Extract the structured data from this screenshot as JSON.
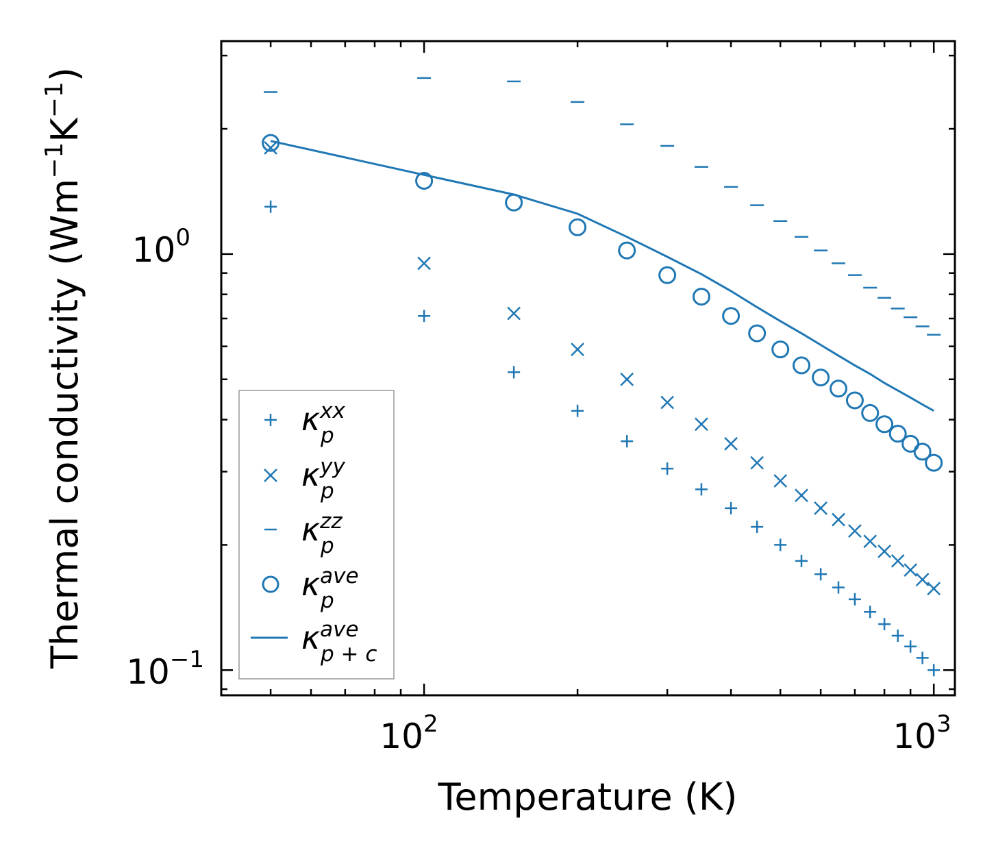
{
  "chart_data": {
    "type": "scatter",
    "xlabel": "Temperature (K)",
    "ylabel_main": "Thermal conductivity (Wm",
    "ylabel_exp1": "−1",
    "ylabel_mid": "K",
    "ylabel_exp2": "−1",
    "ylabel_end": ")",
    "xscale": "log",
    "yscale": "log",
    "xlim": [
      40,
      1100
    ],
    "ylim": [
      0.087,
      3.25
    ],
    "xticks": [
      {
        "base": "10",
        "exp": "2",
        "value": 100
      },
      {
        "base": "10",
        "exp": "3",
        "value": 1000
      }
    ],
    "yticks": [
      {
        "base": "10",
        "exp": "−1",
        "value": 0.1
      },
      {
        "base": "10",
        "exp": "0",
        "value": 1
      }
    ],
    "color": "#1f77b4",
    "x": [
      50,
      100,
      150,
      200,
      250,
      300,
      350,
      400,
      450,
      500,
      550,
      600,
      650,
      700,
      750,
      800,
      850,
      900,
      950,
      1000
    ],
    "series": [
      {
        "name": "kxx",
        "marker": "plus",
        "label_base": "κ",
        "label_sub": "p",
        "label_sup": "xx",
        "values": [
          1.3,
          0.71,
          0.52,
          0.42,
          0.355,
          0.305,
          0.272,
          0.245,
          0.221,
          0.2,
          0.183,
          0.17,
          0.158,
          0.148,
          0.138,
          0.129,
          0.121,
          0.114,
          0.107,
          0.1
        ]
      },
      {
        "name": "kyy",
        "marker": "x",
        "label_base": "κ",
        "label_sub": "p",
        "label_sup": "yy",
        "values": [
          1.8,
          0.95,
          0.72,
          0.59,
          0.5,
          0.44,
          0.39,
          0.35,
          0.315,
          0.285,
          0.263,
          0.245,
          0.23,
          0.216,
          0.204,
          0.193,
          0.183,
          0.174,
          0.165,
          0.157
        ]
      },
      {
        "name": "kzz",
        "marker": "hline",
        "label_base": "κ",
        "label_sub": "p",
        "label_sup": "zz",
        "values": [
          2.45,
          2.65,
          2.6,
          2.32,
          2.05,
          1.82,
          1.62,
          1.45,
          1.31,
          1.2,
          1.1,
          1.02,
          0.95,
          0.89,
          0.83,
          0.785,
          0.74,
          0.705,
          0.67,
          0.64
        ]
      },
      {
        "name": "kave",
        "marker": "circle",
        "label_base": "κ",
        "label_sub": "p",
        "label_sup": "ave",
        "values": [
          1.85,
          1.5,
          1.33,
          1.16,
          1.02,
          0.89,
          0.79,
          0.71,
          0.645,
          0.59,
          0.54,
          0.505,
          0.475,
          0.445,
          0.415,
          0.39,
          0.37,
          0.35,
          0.335,
          0.315
        ]
      },
      {
        "name": "kave_pc",
        "marker": "line",
        "label_base": "κ",
        "label_sub": "p + c",
        "label_sup": "ave",
        "values": [
          1.87,
          1.55,
          1.39,
          1.25,
          1.1,
          0.985,
          0.895,
          0.815,
          0.745,
          0.69,
          0.645,
          0.605,
          0.57,
          0.54,
          0.515,
          0.49,
          0.47,
          0.452,
          0.435,
          0.42
        ]
      }
    ],
    "legend_location": "lower-left"
  }
}
